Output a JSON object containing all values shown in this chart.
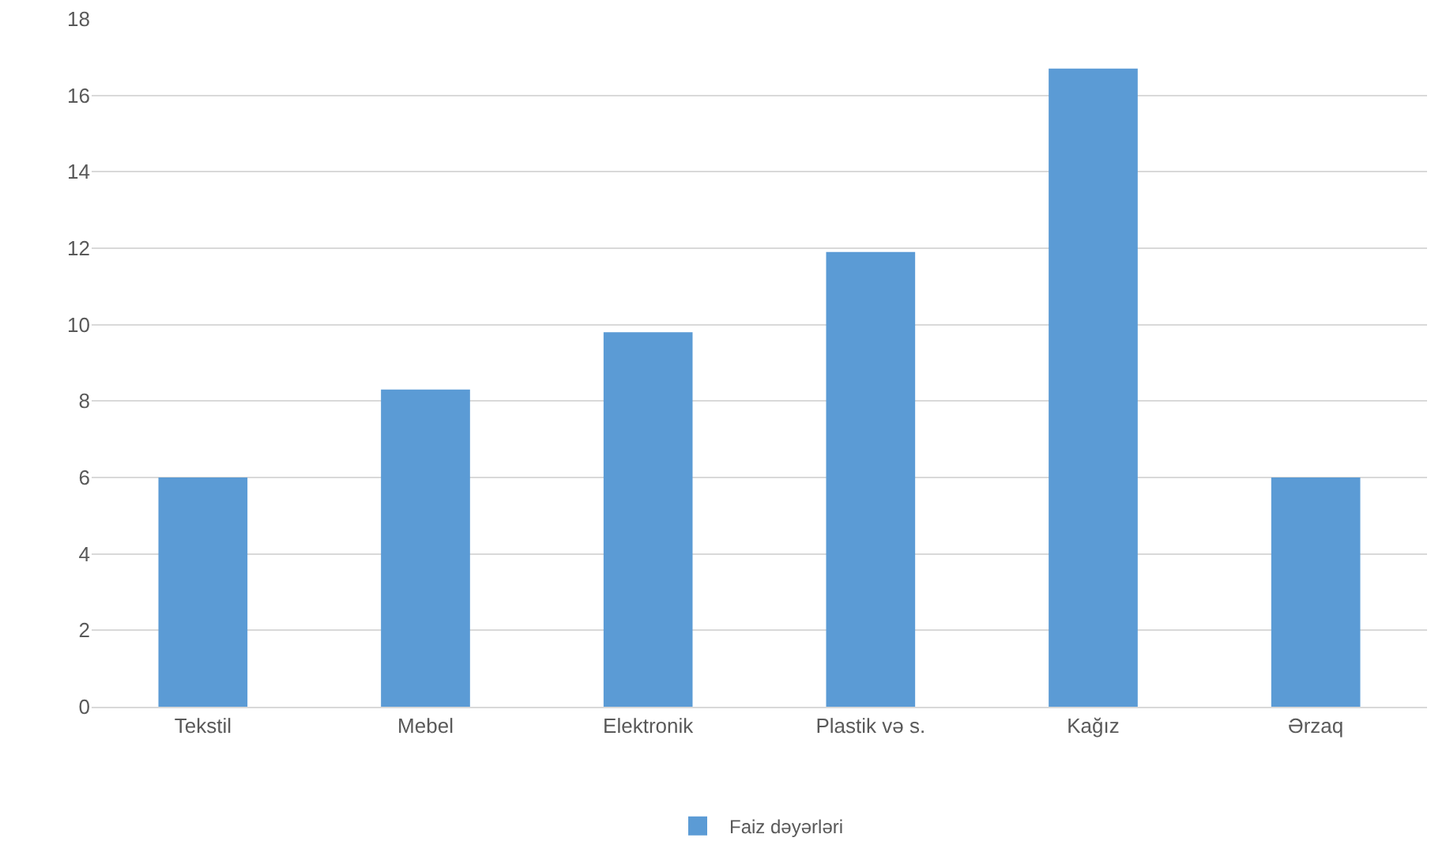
{
  "chart_data": {
    "type": "bar",
    "categories": [
      "Tekstil",
      "Mebel",
      "Elektronik",
      "Plastik və s.",
      "Kağız",
      "Ərzaq"
    ],
    "series": [
      {
        "name": "Faiz dəyərləri",
        "color": "#5b9bd5",
        "values": [
          6,
          8.3,
          9.8,
          11.9,
          16.7,
          6
        ]
      }
    ],
    "ylim": [
      0,
      18
    ],
    "yticks": [
      0,
      2,
      4,
      6,
      8,
      10,
      12,
      14,
      16,
      18
    ],
    "grid": "y",
    "legend": "bottom"
  }
}
